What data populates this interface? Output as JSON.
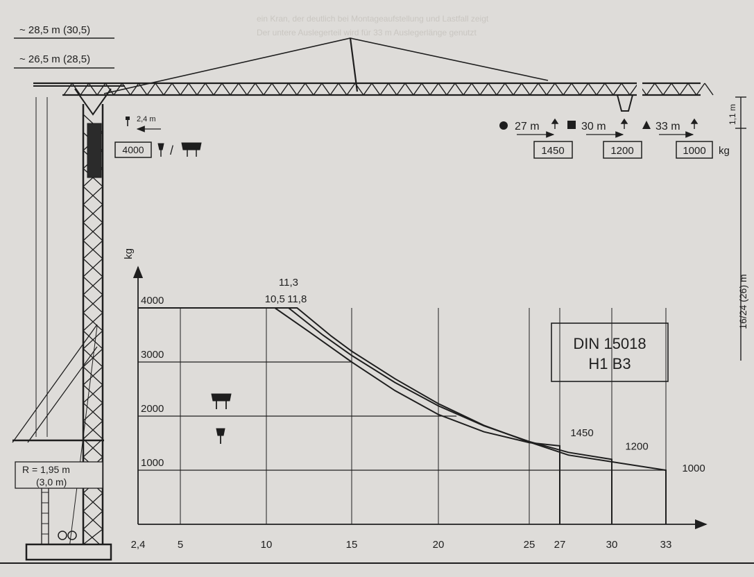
{
  "colors": {
    "paper": "#dedcd9",
    "ink": "#1e1e1e",
    "ghost_text": "#c9c6c1"
  },
  "header": {
    "ghost_line_1": "ein Kran, der deutlich bei Montageaufstellung und Lastfall zeigt",
    "ghost_line_2": "Der untere Auslegerteil wird für 33 m Auslegerlänge genutzt"
  },
  "crane": {
    "height_top": "~ 28,5 m (30,5)",
    "height_hook": "~ 26,5 m (28,5)",
    "min_radius_label": "2,4 m",
    "max_load_box": "4000",
    "load_sep": "/",
    "ballast_radius_line1": "R = 1,95 m",
    "ballast_radius_line2": "(3,0 m)",
    "under_hook": "16/24 (26) m",
    "hook_clearance": "1,1 m",
    "icons": [
      "single-hook-icon",
      "double-hook-icon",
      "circle-marker-icon",
      "square-marker-icon",
      "triangle-marker-icon",
      "arrow-left-icon"
    ]
  },
  "jib_configs": [
    {
      "marker": "circle",
      "length": "27 m",
      "tip_load": "1450"
    },
    {
      "marker": "square",
      "length": "30 m",
      "tip_load": "1200"
    },
    {
      "marker": "triangle",
      "length": "33 m",
      "tip_load": "1000"
    }
  ],
  "unit_kg": "kg",
  "standard_box": {
    "line1": "DIN 15018",
    "line2": "H1 B3"
  },
  "chart_data": {
    "type": "line",
    "title": "",
    "xlabel": "",
    "ylabel": "kg",
    "xlim": [
      2.4,
      35
    ],
    "ylim": [
      0,
      4500
    ],
    "x_ticks": [
      2.4,
      5,
      10,
      15,
      20,
      25,
      27,
      30,
      33
    ],
    "x_tick_labels": [
      "2,4",
      "5",
      "10",
      "15",
      "20",
      "25",
      "27",
      "30",
      "33"
    ],
    "y_ticks": [
      1000,
      2000,
      3000,
      4000
    ],
    "y_tick_labels": [
      "1000",
      "2000",
      "3000",
      "4000"
    ],
    "grid": true,
    "series": [
      {
        "x": [
          2.4,
          10.5,
          12.5,
          15,
          17.5,
          20,
          22.5,
          25,
          27
        ],
        "y": [
          4000,
          4000,
          3560,
          3000,
          2470,
          2030,
          1710,
          1510,
          1450
        ]
      },
      {
        "x": [
          2.4,
          11.3,
          13.3,
          15,
          17.5,
          20,
          22.5,
          25,
          27.5,
          30
        ],
        "y": [
          4000,
          4000,
          3500,
          3120,
          2620,
          2190,
          1820,
          1530,
          1330,
          1200
        ]
      },
      {
        "x": [
          2.4,
          11.8,
          13.8,
          15,
          17.5,
          20,
          22.5,
          25,
          27.5,
          33
        ],
        "y": [
          4000,
          4000,
          3480,
          3200,
          2690,
          2230,
          1830,
          1520,
          1280,
          1000
        ]
      }
    ],
    "annotations": [
      {
        "text": "10,5",
        "x": 10.5,
        "y": 4000
      },
      {
        "text": "11,3",
        "x": 11.3,
        "y": 4000
      },
      {
        "text": "11,8",
        "x": 11.8,
        "y": 4000
      },
      {
        "text": "1450",
        "x": 27,
        "y": 1450
      },
      {
        "text": "1200",
        "x": 30,
        "y": 1200
      },
      {
        "text": "1000",
        "x": 33,
        "y": 1000
      }
    ]
  }
}
